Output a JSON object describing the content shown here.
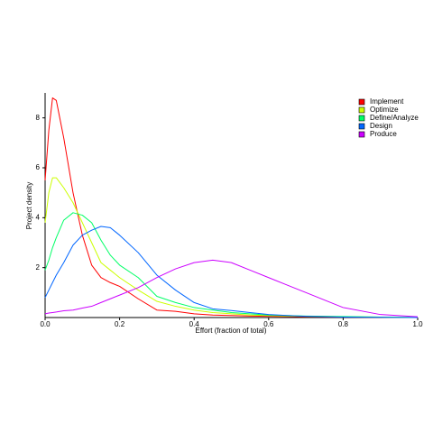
{
  "chart_data": {
    "type": "line",
    "x_label": "Effort (fraction of total)",
    "y_label": "Project density",
    "x": [
      0,
      0.01,
      0.02,
      0.03,
      0.05,
      0.075,
      0.1,
      0.125,
      0.15,
      0.175,
      0.2,
      0.25,
      0.3,
      0.35,
      0.4,
      0.45,
      0.5,
      0.55,
      0.6,
      0.65,
      0.7,
      0.8,
      0.9,
      1.0
    ],
    "series": [
      {
        "name": "Implement",
        "color": "#FF0000",
        "values": [
          5.5,
          7.5,
          8.8,
          8.7,
          7.2,
          5,
          3.3,
          2.1,
          1.6,
          1.4,
          1.25,
          0.75,
          0.3,
          0.25,
          0.15,
          0.1,
          0.08,
          0.06,
          0.05,
          0.04,
          0.03,
          0.02,
          0.01,
          0
        ]
      },
      {
        "name": "Optimize",
        "color": "#CCFF00",
        "values": [
          3.8,
          5,
          5.6,
          5.6,
          5.2,
          4.6,
          3.8,
          3,
          2.2,
          1.9,
          1.6,
          1.1,
          0.65,
          0.45,
          0.3,
          0.2,
          0.15,
          0.1,
          0.08,
          0.06,
          0.05,
          0.03,
          0.02,
          0
        ]
      },
      {
        "name": "Define/Analyze",
        "color": "#00FF66",
        "values": [
          1.9,
          2.3,
          2.8,
          3.2,
          3.9,
          4.2,
          4.1,
          3.8,
          3.1,
          2.5,
          2.1,
          1.6,
          0.85,
          0.6,
          0.4,
          0.3,
          0.2,
          0.15,
          0.1,
          0.08,
          0.06,
          0.04,
          0.02,
          0.01
        ]
      },
      {
        "name": "Design",
        "color": "#0066FF",
        "values": [
          0.8,
          1.1,
          1.4,
          1.7,
          2.2,
          2.9,
          3.3,
          3.5,
          3.65,
          3.6,
          3.3,
          2.6,
          1.7,
          1.1,
          0.6,
          0.35,
          0.28,
          0.2,
          0.12,
          0.08,
          0.05,
          0.02,
          0.01,
          0
        ]
      },
      {
        "name": "Produce",
        "color": "#CC00FF",
        "values": [
          0.15,
          0.18,
          0.2,
          0.22,
          0.27,
          0.3,
          0.38,
          0.45,
          0.6,
          0.75,
          0.9,
          1.2,
          1.6,
          1.95,
          2.2,
          2.3,
          2.2,
          1.9,
          1.6,
          1.3,
          1.0,
          0.4,
          0.12,
          0.03
        ]
      }
    ],
    "xlim": [
      0,
      1.0
    ],
    "ylim": [
      0,
      9
    ],
    "xticks": [
      {
        "value": 0,
        "label": "0.0"
      },
      0.2,
      0.4,
      0.6,
      0.8,
      {
        "value": 1.0,
        "label": "1.0"
      }
    ],
    "yticks": [
      2,
      4,
      6,
      8
    ],
    "legend": "top-right"
  }
}
